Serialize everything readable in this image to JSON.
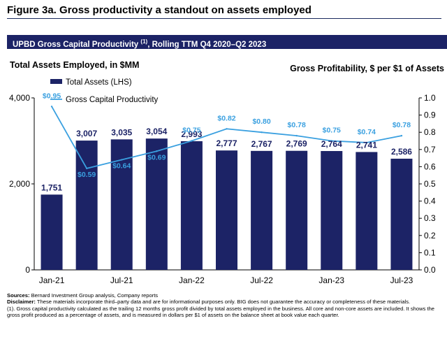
{
  "figure_title": "Figure 3a. Gross productivity a standout on assets employed",
  "subtitle": "UPBD Gross Capital Productivity",
  "subtitle_sup": "(1)",
  "subtitle_rest": ", Rolling TTM Q4 2020–Q2 2023",
  "left_axis_title": "Total Assets Employed, in $MM",
  "right_axis_title": "Gross Profitability, $ per $1 of Assets",
  "colors": {
    "bar": "#1c2366",
    "line": "#3aa0e0",
    "label_line": "#3aa0e0",
    "bar_label": "#1c2366"
  },
  "chart_data": {
    "type": "bar+line",
    "categories": [
      "Jan-21",
      "Apr-21",
      "Jul-21",
      "Oct-21",
      "Jan-22",
      "Apr-22",
      "Jul-22",
      "Oct-22",
      "Jan-23",
      "Apr-23",
      "Jul-23"
    ],
    "x_tick_labels": [
      "Jan-21",
      "",
      "Jul-21",
      "",
      "Jan-22",
      "",
      "Jul-22",
      "",
      "Jan-23",
      "",
      "Jul-23"
    ],
    "series": [
      {
        "name": "Total Assets (LHS)",
        "type": "bar",
        "axis": "left",
        "values": [
          1751,
          3007,
          3035,
          3054,
          2993,
          2777,
          2767,
          2769,
          2764,
          2741,
          2586
        ],
        "labels": [
          "1,751",
          "3,007",
          "3,035",
          "3,054",
          "2,993",
          "2,777",
          "2,767",
          "2,769",
          "2,764",
          "2,741",
          "2,586"
        ]
      },
      {
        "name": "Gross Capital Productivity",
        "type": "line",
        "axis": "right",
        "values": [
          0.95,
          0.59,
          0.64,
          0.69,
          0.75,
          0.82,
          0.8,
          0.78,
          0.75,
          0.74,
          0.78
        ],
        "labels": [
          "$0.95",
          "$0.59",
          "$0.64",
          "$0.69",
          "$0.75",
          "$0.82",
          "$0.80",
          "$0.78",
          "$0.75",
          "$0.74",
          "$0.78"
        ]
      }
    ],
    "left_axis": {
      "min": 0,
      "max": 4000,
      "ticks": [
        0,
        2000,
        4000
      ],
      "tick_labels": [
        "0",
        "2,000",
        "4,000"
      ]
    },
    "right_axis": {
      "min": 0,
      "max": 1.0,
      "ticks": [
        0,
        0.1,
        0.2,
        0.3,
        0.4,
        0.5,
        0.6,
        0.7,
        0.8,
        0.9,
        1.0
      ],
      "tick_labels": [
        "0.0",
        "0.1",
        "0.2",
        "0.3",
        "0.4",
        "0.5",
        "0.6",
        "0.7",
        "0.8",
        "0.9",
        "1.0"
      ]
    },
    "legend_position": "top-left"
  },
  "footer": {
    "sources_label": "Sources:",
    "sources_text": " Bernard Investment Group analysis, Company reports",
    "disclaimer_label": "Disclaimer:",
    "disclaimer_text": " These materials incorporate third–party data and are for informational purposes only. BIG does not guarantee the accuracy or completeness of these materials.",
    "note_text": "(1). Gross capital productivity calculated as the trailing 12 months gross profit divided by total assets employed in the business. All core and non-core assets are included. It shows the gross profit produced as a percentage of assets, and is measured in dollars per $1 of assets on the balance sheet at book value each quarter."
  }
}
